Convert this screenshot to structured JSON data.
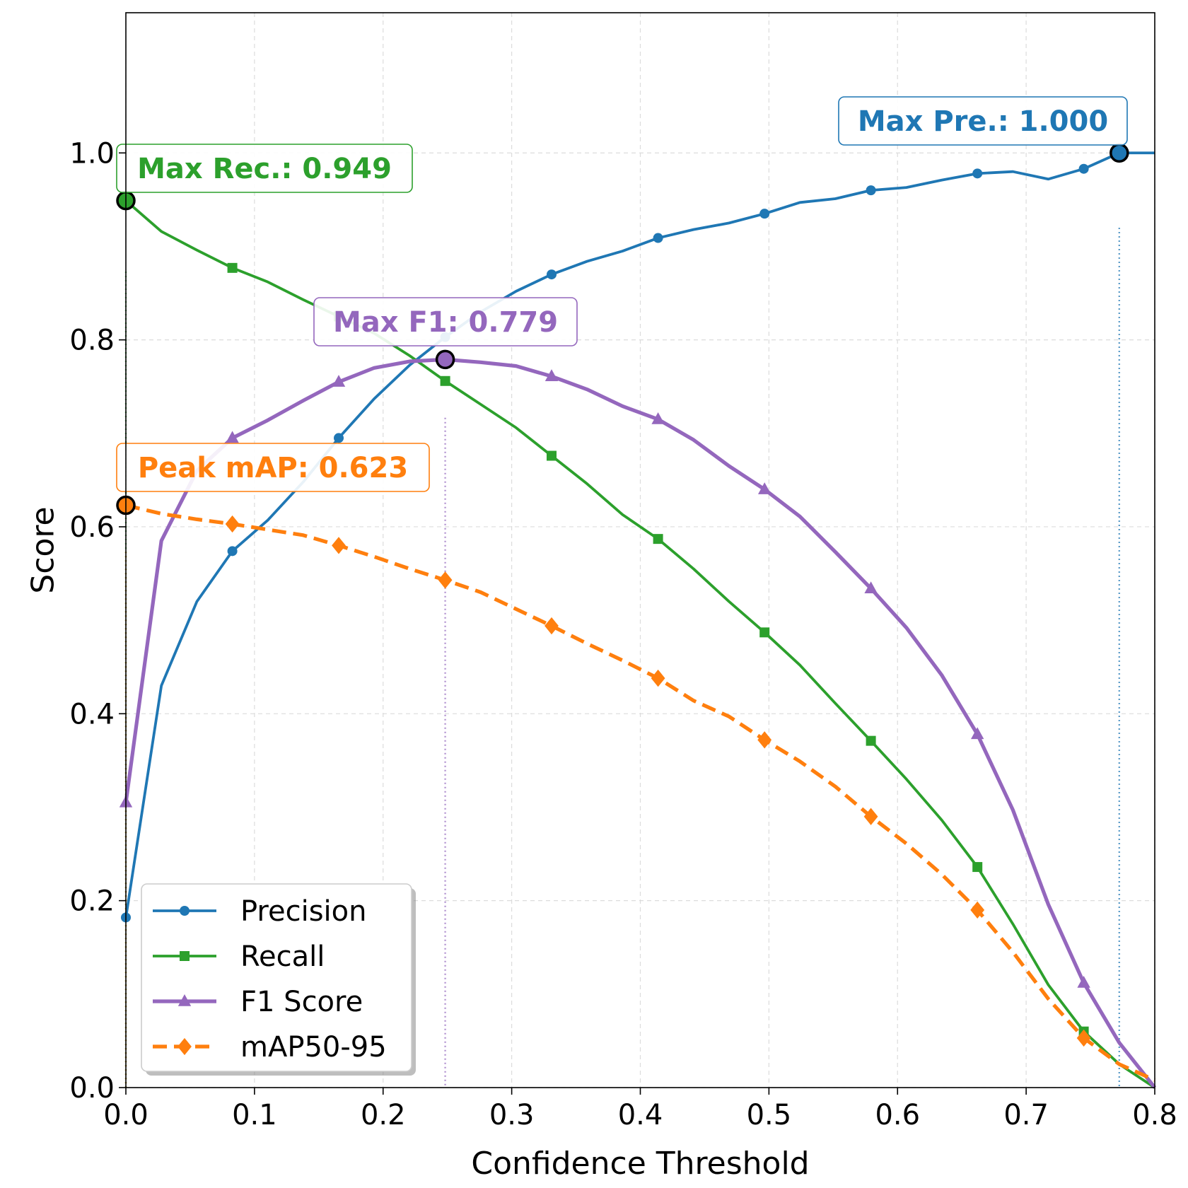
{
  "chart_data": {
    "type": "line",
    "title": "",
    "xlabel": "Confidence Threshold",
    "ylabel": "Score",
    "xlim": [
      0.0,
      0.8
    ],
    "ylim": [
      0.0,
      1.15
    ],
    "xticks": [
      "0.0",
      "0.1",
      "0.2",
      "0.3",
      "0.4",
      "0.5",
      "0.6",
      "0.7",
      "0.8"
    ],
    "yticks": [
      "0.0",
      "0.2",
      "0.4",
      "0.6",
      "0.8",
      "1.0"
    ],
    "grid": true,
    "legend_position": "lower-left",
    "x": [
      0.0,
      0.0276,
      0.0552,
      0.0828,
      0.1103,
      0.1379,
      0.1655,
      0.1931,
      0.2207,
      0.2483,
      0.2759,
      0.3034,
      0.331,
      0.3586,
      0.3862,
      0.4138,
      0.4414,
      0.469,
      0.4966,
      0.5241,
      0.5517,
      0.5793,
      0.6069,
      0.6345,
      0.6621,
      0.6897,
      0.7172,
      0.7448,
      0.7724,
      0.8
    ],
    "series": [
      {
        "name": "Precision",
        "color": "#1f77b4",
        "marker": "circle",
        "linestyle": "solid",
        "values": [
          0.182,
          0.43,
          0.52,
          0.574,
          0.607,
          0.648,
          0.695,
          0.737,
          0.773,
          0.803,
          0.83,
          0.852,
          0.87,
          0.884,
          0.895,
          0.909,
          0.918,
          0.925,
          0.935,
          0.947,
          0.951,
          0.96,
          0.963,
          0.971,
          0.978,
          0.98,
          0.972,
          0.983,
          1.0,
          1.0
        ]
      },
      {
        "name": "Recall",
        "color": "#2ca02c",
        "marker": "square",
        "linestyle": "solid",
        "values": [
          0.949,
          0.916,
          0.896,
          0.877,
          0.862,
          0.843,
          0.825,
          0.807,
          0.783,
          0.756,
          0.731,
          0.706,
          0.676,
          0.646,
          0.613,
          0.587,
          0.555,
          0.52,
          0.487,
          0.452,
          0.411,
          0.371,
          0.33,
          0.286,
          0.236,
          0.175,
          0.11,
          0.06,
          0.025,
          0.0
        ]
      },
      {
        "name": "F1 Score",
        "color": "#9467bd",
        "marker": "triangle",
        "linestyle": "solid",
        "values": [
          0.305,
          0.585,
          0.66,
          0.695,
          0.714,
          0.735,
          0.755,
          0.77,
          0.777,
          0.779,
          0.776,
          0.772,
          0.761,
          0.747,
          0.729,
          0.715,
          0.693,
          0.665,
          0.64,
          0.611,
          0.573,
          0.534,
          0.492,
          0.441,
          0.378,
          0.297,
          0.196,
          0.112,
          0.048,
          0.0
        ]
      },
      {
        "name": "mAP50-95",
        "color": "#ff7f0e",
        "marker": "diamond",
        "linestyle": "dashed",
        "values": [
          0.623,
          0.614,
          0.608,
          0.603,
          0.597,
          0.591,
          0.58,
          0.568,
          0.555,
          0.543,
          0.53,
          0.512,
          0.494,
          0.475,
          0.457,
          0.438,
          0.414,
          0.397,
          0.372,
          0.349,
          0.322,
          0.29,
          0.261,
          0.228,
          0.19,
          0.145,
          0.095,
          0.053,
          0.025,
          0.008
        ]
      }
    ],
    "annotations": [
      {
        "text": "Max Pre.: 1.000",
        "series": "Precision",
        "x": 0.7724,
        "y": 1.0,
        "color": "#1f77b4"
      },
      {
        "text": "Max Rec.: 0.949",
        "series": "Recall",
        "x": 0.0,
        "y": 0.949,
        "color": "#2ca02c"
      },
      {
        "text": "Max F1: 0.779",
        "series": "F1 Score",
        "x": 0.2483,
        "y": 0.779,
        "color": "#9467bd"
      },
      {
        "text": "Peak mAP: 0.623",
        "series": "mAP50-95",
        "x": 0.0,
        "y": 0.623,
        "color": "#ff7f0e"
      }
    ]
  }
}
